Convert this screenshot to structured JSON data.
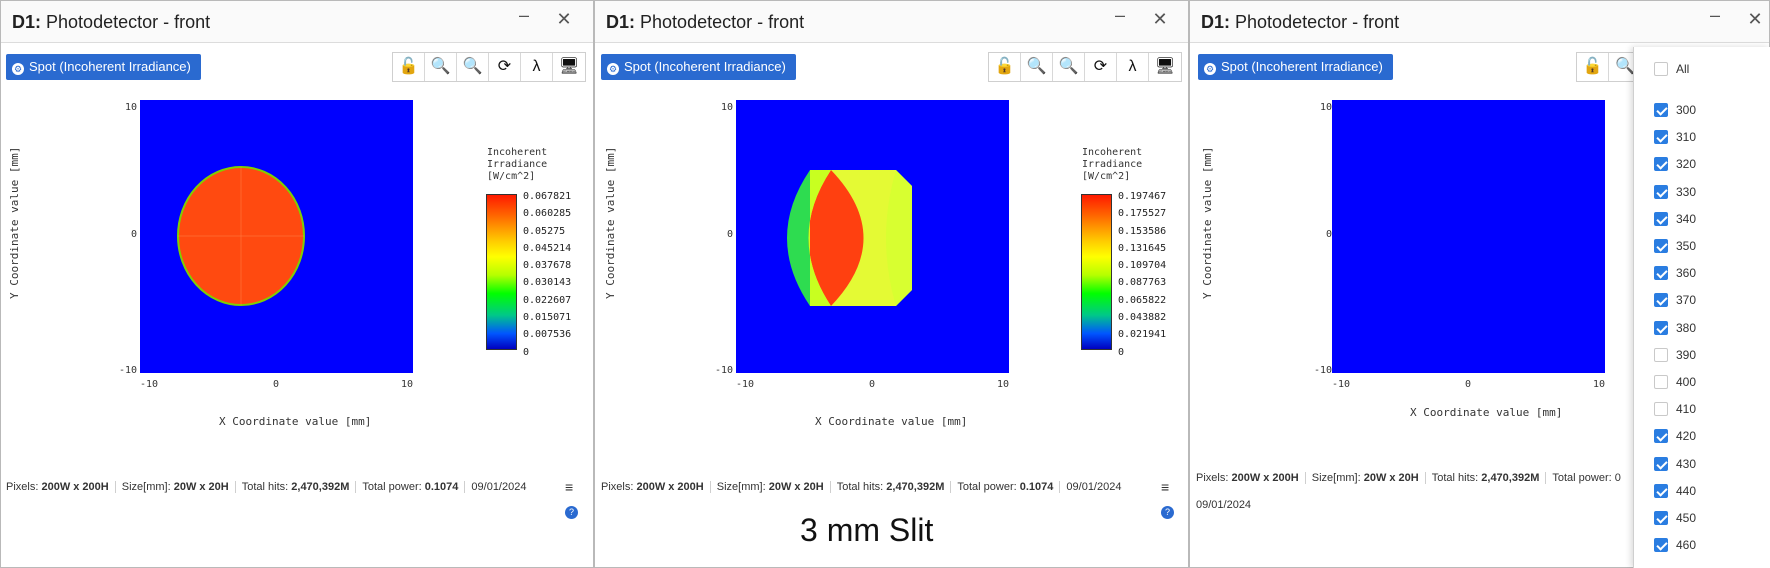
{
  "panels": [
    {
      "title_bold": "D1:",
      "title_rest": "Photodetector - front",
      "spot_button": "Spot (Incoherent Irradiance)",
      "colorbar_title": [
        "Incoherent",
        "Irradiance",
        "[W/cm^2]"
      ],
      "colorbar_values": [
        "0.067821",
        "0.060285",
        "0.05275",
        "0.045214",
        "0.037678",
        "0.030143",
        "0.022607",
        "0.015071",
        "0.007536",
        "0"
      ]
    },
    {
      "title_bold": "D1:",
      "title_rest": "Photodetector - front",
      "spot_button": "Spot (Incoherent Irradiance)",
      "colorbar_title": [
        "Incoherent",
        "Irradiance",
        "[W/cm^2]"
      ],
      "colorbar_values": [
        "0.197467",
        "0.175527",
        "0.153586",
        "0.131645",
        "0.109704",
        "0.087763",
        "0.065822",
        "0.043882",
        "0.021941",
        "0"
      ]
    },
    {
      "title_bold": "D1:",
      "title_rest": "Photodetector - front",
      "spot_button": "Spot (Incoherent Irradiance)"
    }
  ],
  "window_controls": {
    "minimize": "–",
    "close": "✕"
  },
  "toolbar_icons": [
    "lock-icon",
    "zoom-in-icon",
    "zoom-out-icon",
    "refresh-icon",
    "lambda-icon",
    "monitor-icon"
  ],
  "toolbar_glyphs": {
    "lock": "🔓",
    "zoom_in": "🔍",
    "zoom_out": "🔍",
    "refresh": "⟳",
    "lambda": "λ",
    "monitor": "🖥"
  },
  "axes": {
    "x_label": "X Coordinate value [mm]",
    "y_label": "Y Coordinate value [mm]",
    "x_ticks": [
      "-10",
      "0",
      "10"
    ],
    "y_ticks": [
      "10",
      "0",
      "-10"
    ]
  },
  "status": {
    "pixels_label": "Pixels:",
    "pixels_value": "200W x 200H",
    "size_label": "Size[mm]:",
    "size_value": "20W x 20H",
    "hits_label": "Total hits:",
    "hits_value": "2,470,392M",
    "power_label": "Total power:",
    "power_value": "0.1074",
    "date": "09/01/2024",
    "power_label_truncated": "Total power: 0"
  },
  "caption": "3 mm Slit",
  "wavelength_dropdown": {
    "all_label": "All",
    "all_checked": false,
    "items": [
      {
        "label": "300",
        "checked": true
      },
      {
        "label": "310",
        "checked": true
      },
      {
        "label": "320",
        "checked": true
      },
      {
        "label": "330",
        "checked": true
      },
      {
        "label": "340",
        "checked": true
      },
      {
        "label": "350",
        "checked": true
      },
      {
        "label": "360",
        "checked": true
      },
      {
        "label": "370",
        "checked": true
      },
      {
        "label": "380",
        "checked": true
      },
      {
        "label": "390",
        "checked": false
      },
      {
        "label": "400",
        "checked": false
      },
      {
        "label": "410",
        "checked": false
      },
      {
        "label": "420",
        "checked": true
      },
      {
        "label": "430",
        "checked": true
      },
      {
        "label": "440",
        "checked": true
      },
      {
        "label": "450",
        "checked": true
      },
      {
        "label": "460",
        "checked": true
      }
    ]
  },
  "colors": {
    "accent": "#2a6ad0",
    "plot_background": "#0000ff",
    "spot_red": "#ff3a00"
  }
}
